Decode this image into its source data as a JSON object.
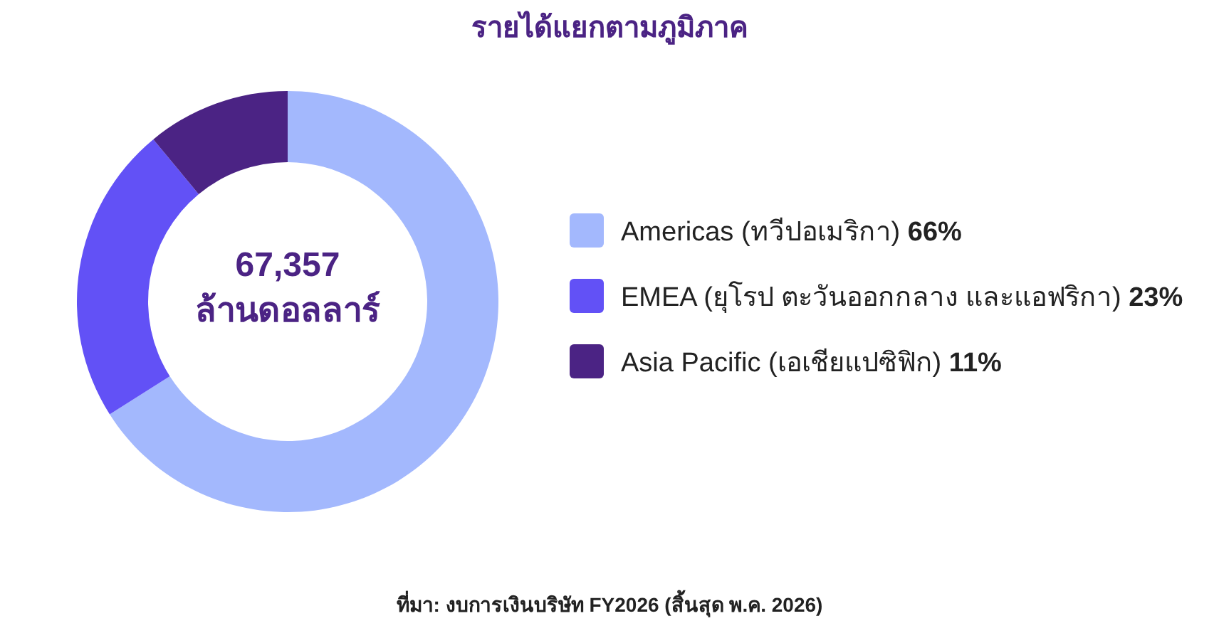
{
  "chart_data": {
    "type": "donut",
    "title": "รายได้แยกตามภูมิภาค",
    "categories": [
      "Americas (ทวีปอเมริกา)",
      "EMEA (ยุโรป ตะวันออกกลาง และแอฟริกา)",
      "Asia Pacific (เอเชียแปซิฟิก)"
    ],
    "values": [
      66,
      23,
      11
    ],
    "colors": [
      "#a3b8fd",
      "#6251f6",
      "#4b2384"
    ],
    "value_labels": [
      "66%",
      "23%",
      "11%"
    ],
    "legend": "right",
    "annotations": [
      "67,357 ล้านดอลลาร์",
      "ที่มา: งบการเงินบริษัท FY2026 (สิ้นสุด พ.ค. 2026)"
    ]
  }
}
